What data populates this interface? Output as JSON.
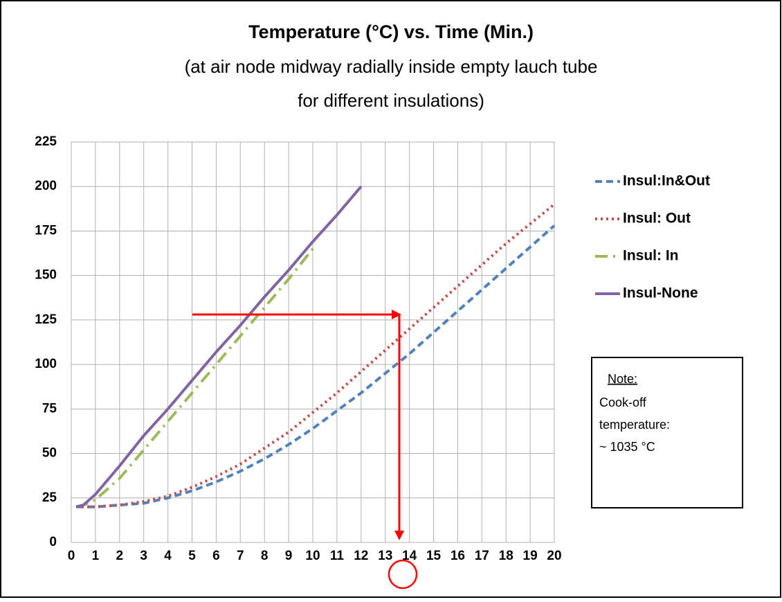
{
  "chart_data": {
    "type": "line",
    "title": "Temperature (°C) vs. Time (Min.)",
    "subtitle": [
      "(at air node midway radially inside empty lauch tube",
      "for different insulations)"
    ],
    "xlim": [
      0,
      20
    ],
    "ylim": [
      0,
      225
    ],
    "xticks": [
      0,
      1,
      2,
      3,
      4,
      5,
      6,
      7,
      8,
      9,
      10,
      11,
      12,
      13,
      14,
      15,
      16,
      17,
      18,
      19,
      20
    ],
    "yticks": [
      0,
      25,
      50,
      75,
      100,
      125,
      150,
      175,
      200,
      225
    ],
    "grid": true,
    "legend": "right",
    "series": [
      {
        "name": "Insul:In&Out",
        "color": "#4f81bd",
        "dash": "dashed",
        "x": [
          0.2,
          1,
          2,
          3,
          4,
          5,
          6,
          7,
          8,
          9,
          10,
          11,
          12,
          13,
          14,
          15,
          16,
          17,
          18,
          19,
          20
        ],
        "values": [
          20,
          20,
          21,
          22,
          25,
          29,
          34,
          40,
          47,
          55,
          64,
          74,
          84,
          95,
          106,
          118,
          130,
          142,
          154,
          166,
          178
        ]
      },
      {
        "name": "Insul: Out",
        "color": "#c0504d",
        "dash": "dotted",
        "x": [
          0.2,
          1,
          2,
          3,
          4,
          5,
          6,
          7,
          8,
          9,
          10,
          11,
          12,
          13,
          14,
          15,
          16,
          17,
          18,
          19,
          20
        ],
        "values": [
          20,
          20,
          21,
          23,
          26,
          31,
          37,
          44,
          53,
          62,
          73,
          84,
          96,
          108,
          120,
          132,
          144,
          156,
          168,
          179,
          190
        ]
      },
      {
        "name": "Insul: In",
        "color": "#9bbb59",
        "dash": "dashdot",
        "x": [
          0.2,
          0.5,
          1,
          2,
          3,
          4,
          5,
          6,
          7,
          8,
          9,
          10
        ],
        "values": [
          20,
          21,
          24,
          36,
          52,
          68,
          84,
          100,
          116,
          132,
          148,
          165
        ]
      },
      {
        "name": "Insul-None",
        "color": "#8064a2",
        "dash": "solid",
        "x": [
          0.2,
          0.5,
          1,
          2,
          3,
          4,
          5,
          6,
          7,
          8,
          9,
          10,
          11,
          12
        ],
        "values": [
          20,
          21,
          27,
          43,
          60,
          75,
          91,
          107,
          122,
          138,
          153,
          169,
          184,
          200
        ]
      }
    ],
    "note": {
      "heading": "Note:",
      "lines": [
        "Cook-off",
        "temperature:",
        "~ 1035 °C"
      ]
    }
  }
}
